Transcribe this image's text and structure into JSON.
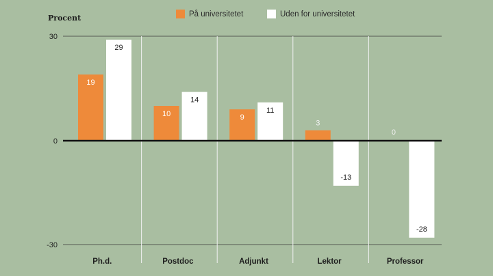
{
  "chart_data": {
    "type": "bar",
    "ylabel": "Procent",
    "categories": [
      "Ph.d.",
      "Postdoc",
      "Adjunkt",
      "Lektor",
      "Professor"
    ],
    "series": [
      {
        "name": "På universitetet",
        "values": [
          19,
          10,
          9,
          3,
          0
        ],
        "color": "#ee8a3a"
      },
      {
        "name": "Uden for universitetet",
        "values": [
          29,
          14,
          11,
          -13,
          -28
        ],
        "color": "#ffffff"
      }
    ],
    "yticks": [
      "30",
      "0",
      "-30"
    ],
    "ylim": [
      -30,
      30
    ],
    "grid": true
  },
  "colors": {
    "background": "#a9bea1",
    "label_on_orange": "#ffffff",
    "label_on_white": "#222222",
    "zero_label": "#f2f2f2"
  }
}
